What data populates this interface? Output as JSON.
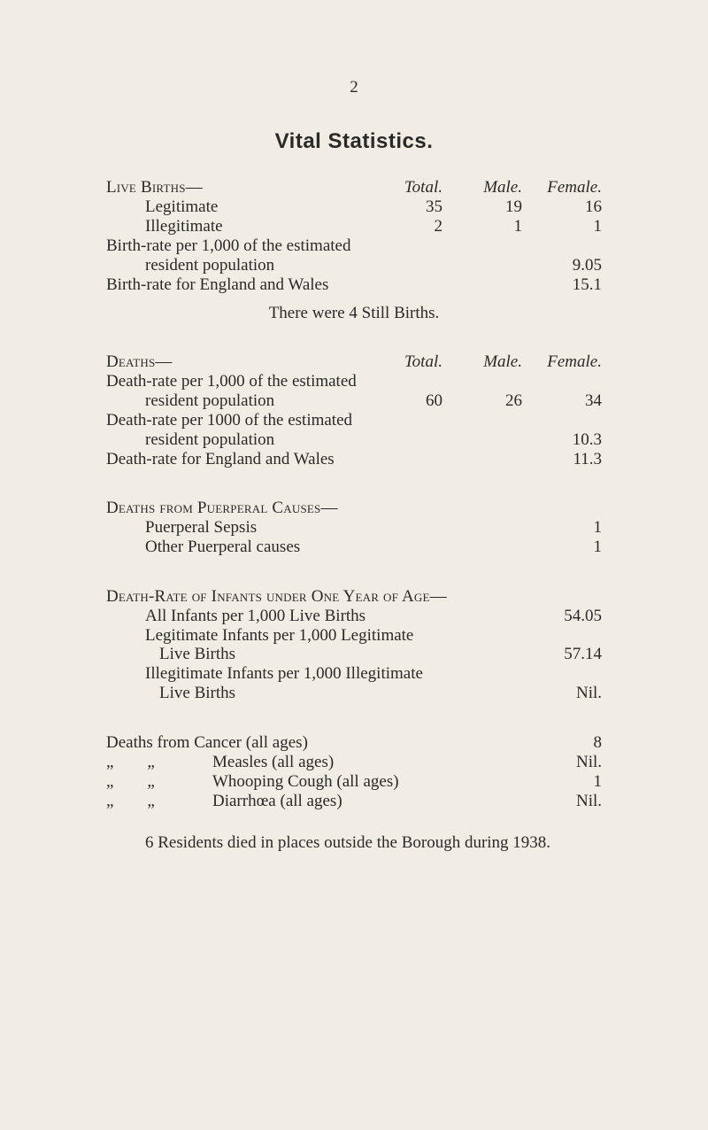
{
  "pageNumber": "2",
  "title": "Vital Statistics.",
  "sec1": {
    "heading": "Live Births—",
    "cols": {
      "total": "Total.",
      "male": "Male.",
      "female": "Female."
    },
    "rows": [
      {
        "label": "Legitimate",
        "total": "35",
        "male": "19",
        "female": "16"
      },
      {
        "label": "Illegitimate",
        "total": "2",
        "male": "1",
        "female": "1"
      }
    ],
    "br1_label": "Birth-rate per 1,000 of the estimated",
    "br1_sub": "resident population",
    "br1_val": "9.05",
    "br2_label": "Birth-rate for England and Wales",
    "br2_val": "15.1",
    "still": "There were 4 Still Births."
  },
  "sec2": {
    "heading": "Deaths—",
    "cols": {
      "total": "Total.",
      "male": "Male.",
      "female": "Female."
    },
    "r1_label": "Death-rate per 1,000 of the estimated",
    "r1_sub": "resident population",
    "r1_total": "60",
    "r1_male": "26",
    "r1_female": "34",
    "r2_label": "Death-rate per 1000 of the estimated",
    "r2_sub": "resident population",
    "r2_val": "10.3",
    "r3_label": "Death-rate for England and Wales",
    "r3_val": "11.3"
  },
  "sec3": {
    "heading": "Deaths from Puerperal Causes—",
    "r1_label": "Puerperal Sepsis",
    "r1_val": "1",
    "r2_label": "Other Puerperal causes",
    "r2_val": "1"
  },
  "sec4": {
    "heading": "Death-Rate of Infants under One Year of Age—",
    "r1a": "All Infants per 1,000 Live Births",
    "r1v": "54.05",
    "r2a": "Legitimate Infants per 1,000 Legitimate",
    "r2b": "Live Births",
    "r2v": "57.14",
    "r3a": "Illegitimate Infants per 1,000 Illegitimate",
    "r3b": "Live Births",
    "r3v": "Nil."
  },
  "sec5": {
    "r1_label": "Deaths from Cancer (all ages)",
    "r1_val": "8",
    "r2_pre": "„        „",
    "r2_label": "Measles (all ages)",
    "r2_val": "Nil.",
    "r3_pre": "„        „",
    "r3_label": "Whooping Cough (all ages)",
    "r3_val": "1",
    "r4_pre": "„        „",
    "r4_label": "Diarrhœa (all ages)",
    "r4_val": "Nil."
  },
  "footer": "6 Residents died in places outside the Borough during 1938."
}
